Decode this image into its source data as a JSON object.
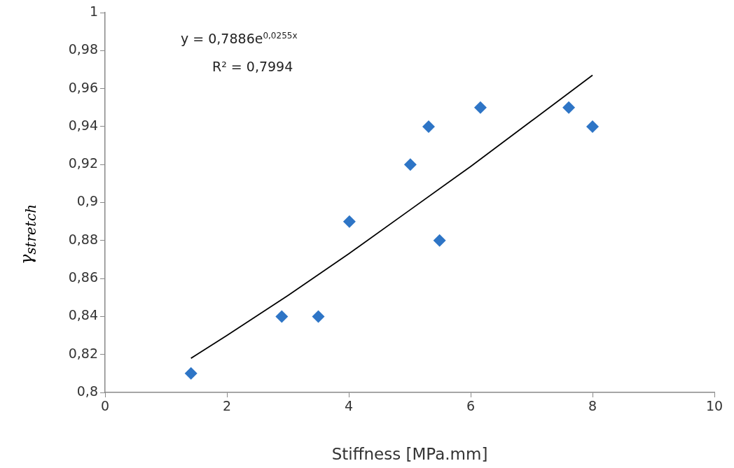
{
  "chart_data": {
    "type": "scatter",
    "xlabel": "Stiffness [MPa.mm]",
    "ylabel": "γ$_{stretch}$",
    "annotations": [
      "y = 0,7886e$^{0,0255x}$",
      "R² = 0,7994"
    ],
    "marker": "diamond",
    "xlim": [
      0,
      10
    ],
    "xticks": [
      0,
      2,
      4,
      6,
      8,
      10
    ],
    "ylim": [
      0.8,
      1
    ],
    "yticks": [
      {
        "value": 0.8,
        "label": "0,8"
      },
      {
        "value": 0.82,
        "label": "0,82"
      },
      {
        "value": 0.84,
        "label": "0,84"
      },
      {
        "value": 0.86,
        "label": "0,86"
      },
      {
        "value": 0.88,
        "label": "0,88"
      },
      {
        "value": 0.9,
        "label": "0,9"
      },
      {
        "value": 0.92,
        "label": "0,92"
      },
      {
        "value": 0.94,
        "label": "0,94"
      },
      {
        "value": 0.96,
        "label": "0,96"
      },
      {
        "value": 0.98,
        "label": "0,98"
      },
      {
        "value": 1,
        "label": "1"
      }
    ],
    "series": [
      {
        "color": "#2e75c6",
        "x": [
          1.41,
          2.9,
          3.5,
          4.01,
          5.01,
          5.31,
          5.49,
          6.16,
          7.61,
          8.0
        ],
        "values": [
          0.81,
          0.84,
          0.84,
          0.89,
          0.92,
          0.94,
          0.88,
          0.95,
          0.95,
          0.94
        ]
      },
      {
        "type": "line",
        "marker": "none",
        "color": "#000000",
        "x": [
          1.41,
          2,
          3,
          4,
          5,
          6,
          7,
          8
        ],
        "values": [
          0.818,
          0.83,
          0.851,
          0.873,
          0.896,
          0.919,
          0.943,
          0.967
        ]
      }
    ]
  }
}
